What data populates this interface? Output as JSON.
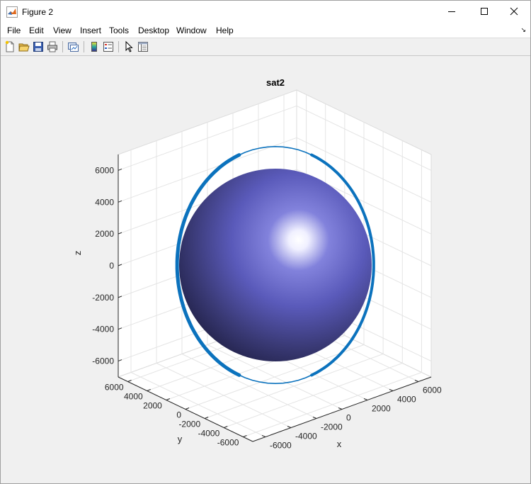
{
  "window": {
    "title": "Figure 2",
    "controls": {
      "minimize": "minimize",
      "maximize": "maximize",
      "close": "close"
    }
  },
  "menu": {
    "items": [
      "File",
      "Edit",
      "View",
      "Insert",
      "Tools",
      "Desktop",
      "Window",
      "Help"
    ]
  },
  "toolbar": {
    "tools": [
      {
        "name": "new-figure-icon"
      },
      {
        "name": "open-file-icon"
      },
      {
        "name": "save-icon"
      },
      {
        "name": "print-icon"
      },
      {
        "name": "link-plot-icon"
      },
      {
        "name": "colorbar-icon"
      },
      {
        "name": "legend-icon"
      },
      {
        "name": "edit-plot-arrow-icon"
      },
      {
        "name": "property-inspector-icon"
      }
    ]
  },
  "colors": {
    "sphere_light": "#f0f0ff",
    "sphere_mid": "#5a5aba",
    "sphere_dark": "#24244e",
    "orbit": "#0b72bd",
    "grid": "#e4e4e4",
    "axis": "#262626"
  },
  "chart_data": {
    "type": "surface-3d",
    "title": "sat2",
    "xlabel": "x",
    "ylabel": "y",
    "zlabel": "z",
    "x_ticks": [
      "-6000",
      "-4000",
      "-2000",
      "0",
      "2000",
      "4000",
      "6000"
    ],
    "y_ticks": [
      "6000",
      "4000",
      "2000",
      "0",
      "-2000",
      "-4000",
      "-6000"
    ],
    "z_ticks": [
      "6000",
      "4000",
      "2000",
      "0",
      "-2000",
      "-4000",
      "-6000"
    ],
    "xlim": [
      -7000,
      7000
    ],
    "ylim": [
      -7000,
      7000
    ],
    "zlim": [
      -7000,
      7000
    ],
    "grid": true,
    "sphere": {
      "radius": 6378
    },
    "orbit": {
      "radius": 7000
    }
  }
}
